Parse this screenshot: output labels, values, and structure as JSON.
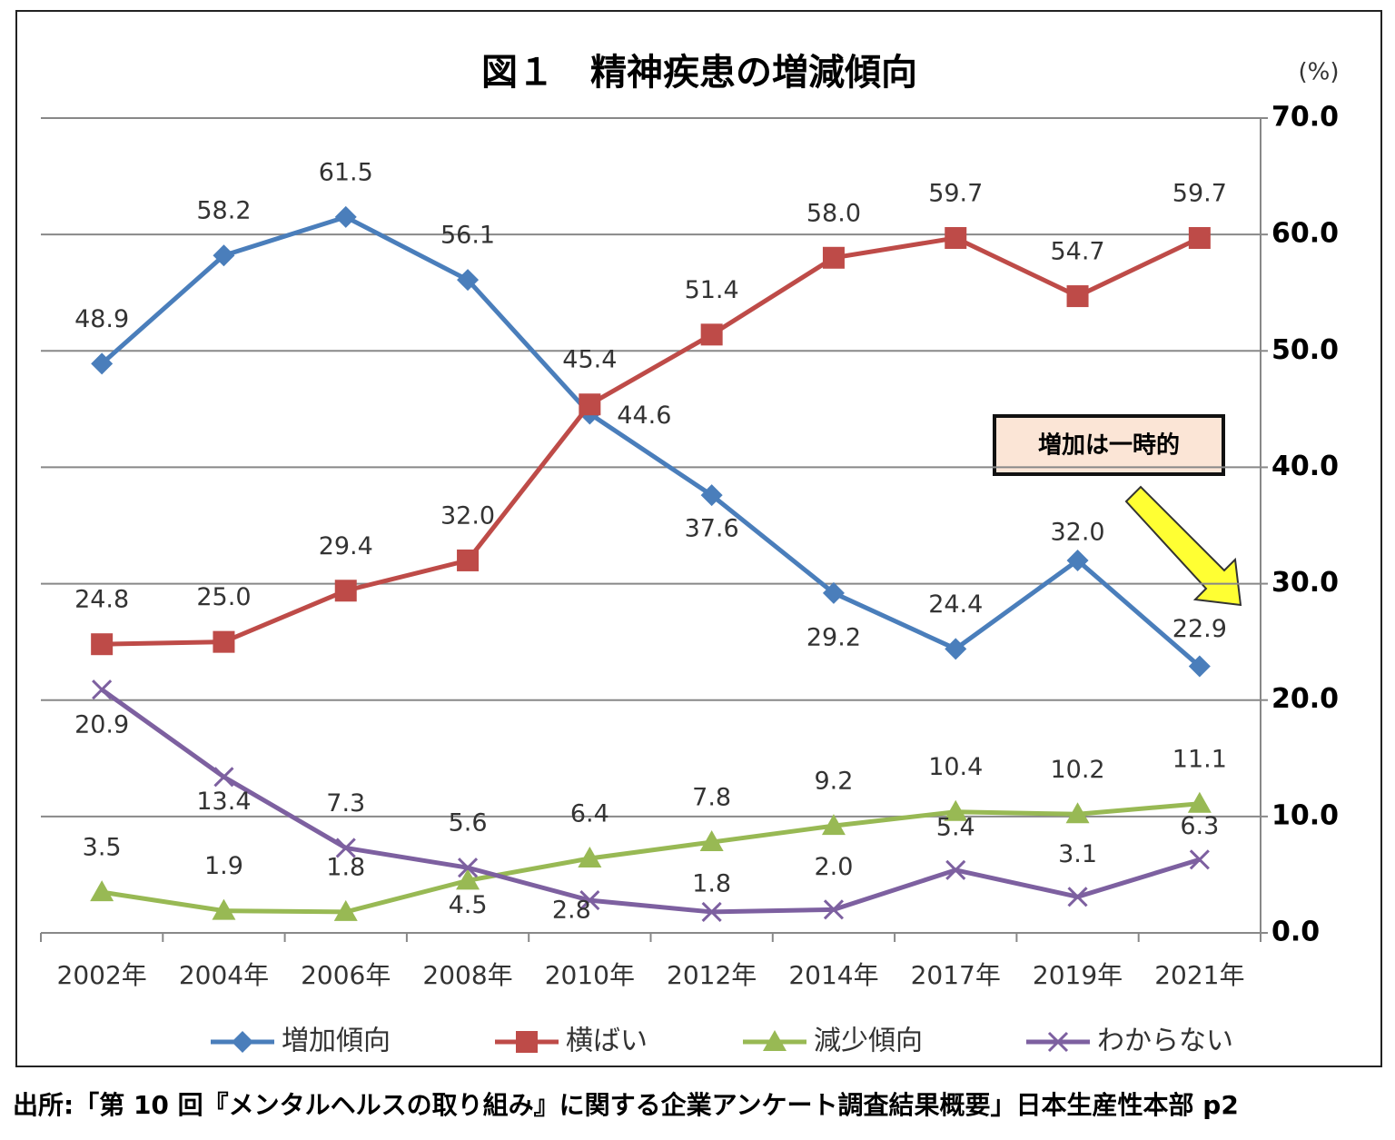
{
  "chart_data": {
    "type": "line",
    "title": "図１　精神疾患の増減傾向",
    "unit_label": "(%)",
    "categories": [
      "2002年",
      "2004年",
      "2006年",
      "2008年",
      "2010年",
      "2012年",
      "2014年",
      "2017年",
      "2019年",
      "2021年"
    ],
    "series": [
      {
        "name": "増加傾向",
        "color": "#4a7ebb",
        "values": [
          48.9,
          58.2,
          61.5,
          56.1,
          44.6,
          37.6,
          29.2,
          24.4,
          32.0,
          22.9
        ],
        "value_labels": [
          "48.9",
          "58.2",
          "61.5",
          "56.1",
          "44.6",
          "37.6",
          "29.2",
          "24.4",
          "32.0",
          "22.9"
        ]
      },
      {
        "name": "横ばい",
        "color": "#be4b48",
        "values": [
          24.8,
          25.0,
          29.4,
          32.0,
          45.4,
          51.4,
          58.0,
          59.7,
          54.7,
          59.7
        ],
        "value_labels": [
          "24.8",
          "25.0",
          "29.4",
          "32.0",
          "45.4",
          "51.4",
          "58.0",
          "59.7",
          "54.7",
          "59.7"
        ]
      },
      {
        "name": "減少傾向",
        "color": "#98b954",
        "values": [
          3.5,
          1.9,
          1.8,
          4.5,
          6.4,
          7.8,
          9.2,
          10.4,
          10.2,
          11.1
        ],
        "value_labels": [
          "3.5",
          "1.9",
          "1.8",
          "4.5",
          "6.4",
          "7.8",
          "9.2",
          "10.4",
          "10.2",
          "11.1"
        ]
      },
      {
        "name": "わからない",
        "color": "#7d60a0",
        "values": [
          20.9,
          13.4,
          7.3,
          5.6,
          2.8,
          1.8,
          2.0,
          5.4,
          3.1,
          6.3
        ],
        "value_labels": [
          "20.9",
          "13.4",
          "7.3",
          "5.6",
          "2.8",
          "1.8",
          "2.0",
          "5.4",
          "3.1",
          "6.3"
        ]
      }
    ],
    "ylim": [
      0,
      70
    ],
    "yticks": [
      {
        "value": 0,
        "label": "0.0"
      },
      {
        "value": 10,
        "label": "10.0"
      },
      {
        "value": 20,
        "label": "20.0"
      },
      {
        "value": 30,
        "label": "30.0"
      },
      {
        "value": 40,
        "label": "40.0"
      },
      {
        "value": 50,
        "label": "50.0"
      },
      {
        "value": 60,
        "label": "60.0"
      },
      {
        "value": 70,
        "label": "70.0"
      }
    ],
    "grid": true,
    "annotation": "増加は一時的",
    "source": "出所:「第 10 回『メンタルヘルスの取り組み』に関する企業アンケート調査結果概要」日本生産性本部 p2"
  }
}
